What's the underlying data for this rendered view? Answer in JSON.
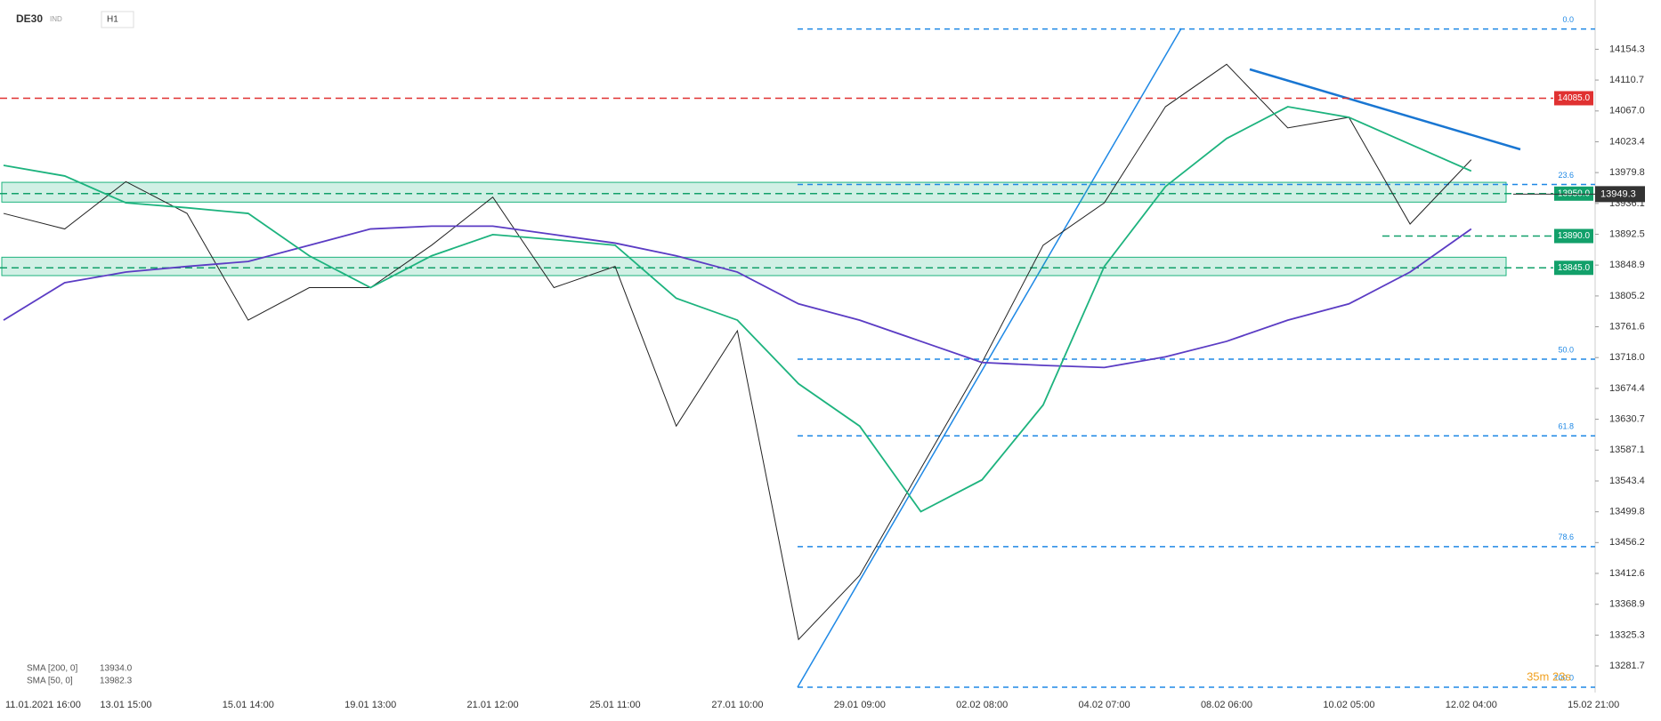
{
  "header": {
    "symbol": "DE30",
    "kind": "IND",
    "interval": "H1"
  },
  "chart_data": {
    "type": "line",
    "categories": [
      "11.01.2021 16:00",
      null,
      "13.01 15:00",
      null,
      "15.01 14:00",
      null,
      "19.01 13:00",
      null,
      "21.01 12:00",
      null,
      "25.01 11:00",
      null,
      "27.01 10:00",
      null,
      "29.01 09:00",
      null,
      "02.02 08:00",
      null,
      "04.02 07:00",
      null,
      "08.02 06:00",
      null,
      "10.02 05:00",
      null,
      "12.02 04:00",
      null,
      "15.02 21:00"
    ],
    "series": [
      {
        "name": "DE30",
        "color": "#222222",
        "values": [
          13922,
          13900,
          13967,
          13922,
          13771,
          13817,
          13817,
          13877,
          13945,
          13817,
          13847,
          13621,
          13756,
          13319,
          13410,
          13561,
          13711,
          13877,
          13937,
          14073,
          14133,
          14043,
          14058,
          13907,
          13998,
          null,
          null
        ],
        "last": 13949.3
      },
      {
        "name": "SMA [200, 0]",
        "color": "#5b3cc4",
        "values": [
          13771,
          13824,
          13839,
          13847,
          13854,
          13877,
          13900,
          13904,
          13904,
          13892,
          13880,
          13862,
          13839,
          13794,
          13771,
          13741,
          13711,
          13707,
          13704,
          13719,
          13741,
          13771,
          13794,
          13839,
          13900,
          null,
          null
        ],
        "last": 13934.0,
        "last_label": "13934.0"
      },
      {
        "name": "SMA [50, 0]",
        "color": "#1db37e",
        "values": [
          13990,
          13975,
          13937,
          13930,
          13922,
          13862,
          13817,
          13862,
          13892,
          13885,
          13877,
          13802,
          13771,
          13681,
          13621,
          13500,
          13545,
          13651,
          13847,
          13960,
          14028,
          14073,
          14058,
          14020,
          13982,
          null,
          null
        ],
        "last": 13982.3
      }
    ],
    "ylim": [
      13244,
      14224
    ],
    "yticks": [
      14154.3,
      14110.7,
      {
        "value": 14067,
        "label": "14067.0"
      },
      14023.4,
      13979.8,
      13936.1,
      13892.5,
      13848.9,
      13805.2,
      13761.6,
      {
        "value": 13718,
        "label": "13718.0"
      },
      13674.4,
      13630.7,
      13587.1,
      13543.4,
      13499.8,
      13456.2,
      13412.6,
      13368.9,
      13325.3,
      13281.7
    ],
    "levels": [
      {
        "value": 14085,
        "label": "14085.0",
        "color": "#e03131"
      },
      {
        "value": 13950,
        "label": "13950.0",
        "color": "#12a06a"
      },
      {
        "value": 13890,
        "label": "13890.0",
        "color": "#12a06a"
      },
      {
        "value": 13845,
        "label": "13845.0",
        "color": "#12a06a"
      }
    ],
    "fib": [
      {
        "label": "0.0",
        "price": 14182.9
      },
      {
        "label": "23.6",
        "price": 13962.9
      },
      {
        "label": "50.0",
        "price": 13715.7
      },
      {
        "label": "61.8",
        "price": 13607.2
      },
      {
        "label": "78.6",
        "price": 13450.5
      },
      {
        "label": "100.0",
        "price": 13251.5
      }
    ],
    "zones": [
      [
        13938,
        13966
      ],
      [
        13834,
        13860
      ]
    ],
    "timer": "35m 23s"
  }
}
